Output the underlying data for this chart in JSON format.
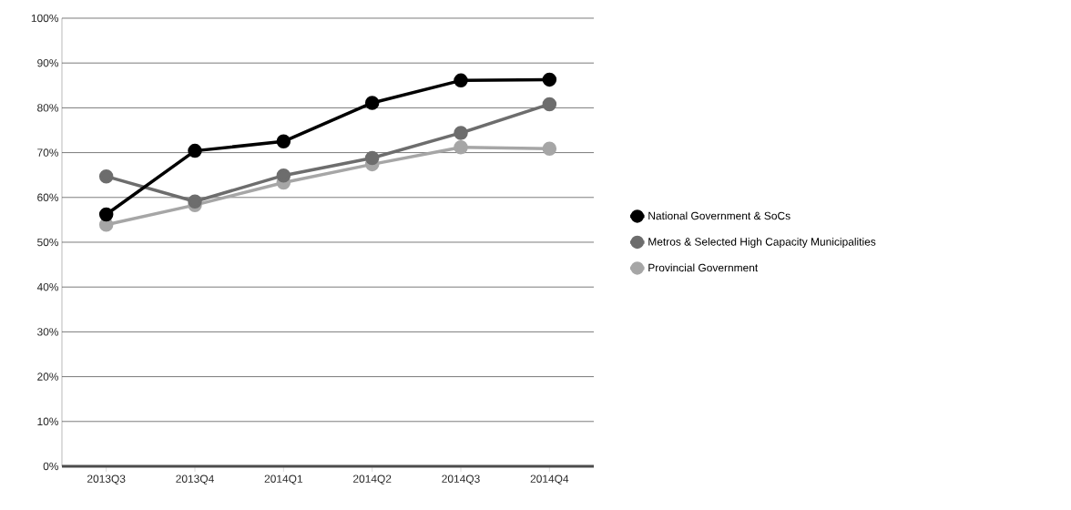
{
  "chart_data": {
    "type": "line",
    "categories": [
      "2013Q3",
      "2013Q4",
      "2014Q1",
      "2014Q2",
      "2014Q3",
      "2014Q4"
    ],
    "series": [
      {
        "name": "National Government & SoCs",
        "color": "#000000",
        "values": [
          56.2,
          70.4,
          72.5,
          81.1,
          86.1,
          86.3
        ]
      },
      {
        "name": "Metros & Selected High Capacity Municipalities",
        "color": "#6d6d6d",
        "values": [
          64.7,
          59.1,
          64.9,
          68.8,
          74.4,
          80.8
        ]
      },
      {
        "name": "Provincial Government",
        "color": "#a6a6a6",
        "values": [
          53.9,
          58.3,
          63.3,
          67.4,
          71.2,
          70.9
        ]
      }
    ],
    "ylim": [
      0,
      100
    ],
    "yticks": [
      {
        "value": 0,
        "label": "0%"
      },
      {
        "value": 10,
        "label": "10%"
      },
      {
        "value": 20,
        "label": "20%"
      },
      {
        "value": 30,
        "label": "30%"
      },
      {
        "value": 40,
        "label": "40%"
      },
      {
        "value": 50,
        "label": "50%"
      },
      {
        "value": 60,
        "label": "60%"
      },
      {
        "value": 70,
        "label": "70%"
      },
      {
        "value": 80,
        "label": "80%"
      },
      {
        "value": 90,
        "label": "90%"
      },
      {
        "value": 100,
        "label": "100%"
      }
    ],
    "grid": "y",
    "legend": "right",
    "marker": "circle",
    "line_style": "solid"
  }
}
